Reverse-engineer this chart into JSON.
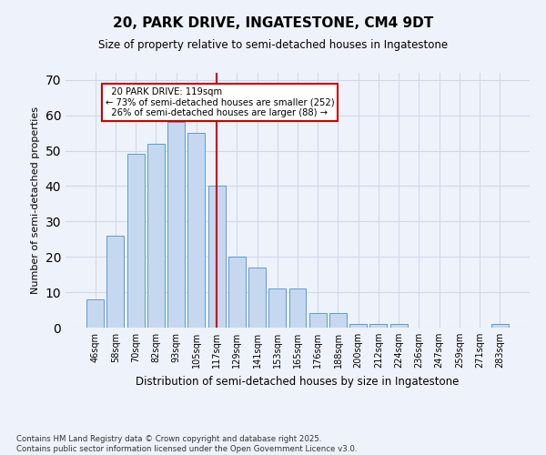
{
  "title": "20, PARK DRIVE, INGATESTONE, CM4 9DT",
  "subtitle": "Size of property relative to semi-detached houses in Ingatestone",
  "xlabel": "Distribution of semi-detached houses by size in Ingatestone",
  "ylabel": "Number of semi-detached properties",
  "categories": [
    "46sqm",
    "58sqm",
    "70sqm",
    "82sqm",
    "93sqm",
    "105sqm",
    "117sqm",
    "129sqm",
    "141sqm",
    "153sqm",
    "165sqm",
    "176sqm",
    "188sqm",
    "200sqm",
    "212sqm",
    "224sqm",
    "236sqm",
    "247sqm",
    "259sqm",
    "271sqm",
    "283sqm"
  ],
  "values": [
    8,
    26,
    49,
    52,
    58,
    55,
    40,
    20,
    17,
    11,
    11,
    4,
    4,
    1,
    1,
    1,
    0,
    0,
    0,
    0,
    1
  ],
  "bar_color": "#c5d8f0",
  "bar_edge_color": "#5b9bd5",
  "grid_color": "#d0d8e8",
  "ref_line_x": 6,
  "ref_line_label": "20 PARK DRIVE: 119sqm",
  "smaller_pct": "73%",
  "smaller_n": 252,
  "larger_pct": "26%",
  "larger_n": 88,
  "annotation_box_color": "#ffffff",
  "annotation_box_edge": "#cc0000",
  "ref_line_color": "#cc0000",
  "ylim": [
    0,
    72
  ],
  "yticks": [
    0,
    10,
    20,
    30,
    40,
    50,
    60,
    70
  ],
  "footnote": "Contains HM Land Registry data © Crown copyright and database right 2025.\nContains public sector information licensed under the Open Government Licence v3.0.",
  "background_color": "#eef2fa"
}
